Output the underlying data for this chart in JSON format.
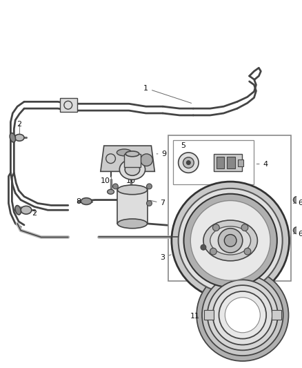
{
  "bg_color": "#ffffff",
  "figsize": [
    4.38,
    5.33
  ],
  "dpi": 100,
  "line_color": "#444444",
  "text_color": "#111111",
  "gray_light": "#cccccc",
  "gray_mid": "#999999",
  "gray_dark": "#555555"
}
